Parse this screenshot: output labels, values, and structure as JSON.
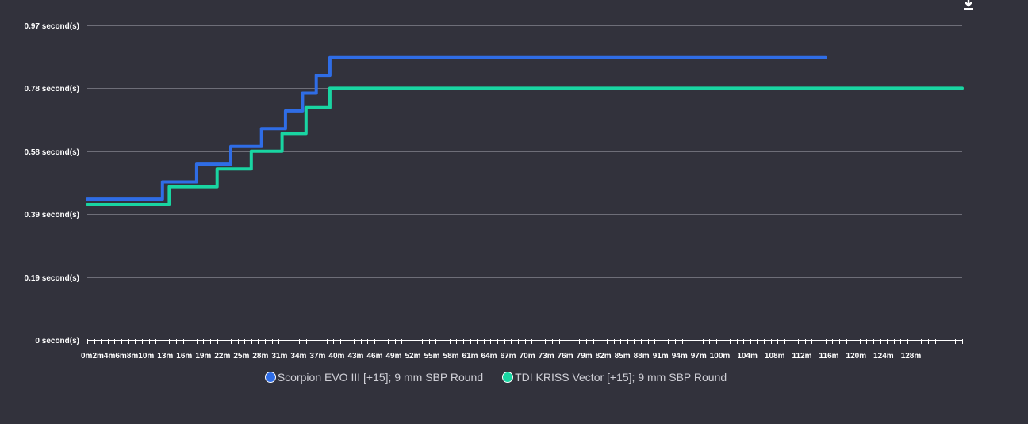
{
  "chart_data": {
    "type": "line",
    "step": true,
    "y_ticks": [
      {
        "value": 0,
        "label": "0 second(s)"
      },
      {
        "value": 0.195,
        "label": "0.19 second(s)"
      },
      {
        "value": 0.39,
        "label": "0.39 second(s)"
      },
      {
        "value": 0.585,
        "label": "0.58 second(s)"
      },
      {
        "value": 0.78,
        "label": "0.78 second(s)"
      },
      {
        "value": 0.975,
        "label": "0.97 second(s)"
      }
    ],
    "ylim": [
      0,
      0.975
    ],
    "x_tick_labels": [
      "0m",
      "2m",
      "4m",
      "6m",
      "8m",
      "10m",
      "13m",
      "16m",
      "19m",
      "22m",
      "25m",
      "28m",
      "31m",
      "34m",
      "37m",
      "40m",
      "43m",
      "46m",
      "49m",
      "52m",
      "55m",
      "58m",
      "61m",
      "64m",
      "67m",
      "70m",
      "73m",
      "76m",
      "79m",
      "82m",
      "85m",
      "88m",
      "91m",
      "94m",
      "97m",
      "100m",
      "104m",
      "108m",
      "112m",
      "116m",
      "120m",
      "124m",
      "128m"
    ],
    "xlim": [
      0,
      128
    ],
    "grid": true,
    "legend_position": "bottom",
    "series": [
      {
        "name": "Scorpion EVO III [+15]; 9 mm SBP Round",
        "color": "#2f6de6",
        "points": [
          [
            0,
            0.437
          ],
          [
            11,
            0.437
          ],
          [
            11,
            0.49
          ],
          [
            16,
            0.49
          ],
          [
            16,
            0.545
          ],
          [
            21,
            0.545
          ],
          [
            21,
            0.6
          ],
          [
            25.5,
            0.6
          ],
          [
            25.5,
            0.655
          ],
          [
            29,
            0.655
          ],
          [
            29,
            0.71
          ],
          [
            31.5,
            0.71
          ],
          [
            31.5,
            0.765
          ],
          [
            33.5,
            0.765
          ],
          [
            33.5,
            0.82
          ],
          [
            35.5,
            0.82
          ],
          [
            35.5,
            0.875
          ],
          [
            108,
            0.875
          ]
        ]
      },
      {
        "name": "TDI KRISS Vector [+15]; 9 mm SBP Round",
        "color": "#19d5a2",
        "points": [
          [
            0,
            0.42
          ],
          [
            12,
            0.42
          ],
          [
            12,
            0.475
          ],
          [
            19,
            0.475
          ],
          [
            19,
            0.53
          ],
          [
            24,
            0.53
          ],
          [
            24,
            0.585
          ],
          [
            28.5,
            0.585
          ],
          [
            28.5,
            0.64
          ],
          [
            32,
            0.64
          ],
          [
            32,
            0.72
          ],
          [
            35.5,
            0.72
          ],
          [
            35.5,
            0.78
          ],
          [
            128,
            0.78
          ]
        ]
      }
    ]
  }
}
